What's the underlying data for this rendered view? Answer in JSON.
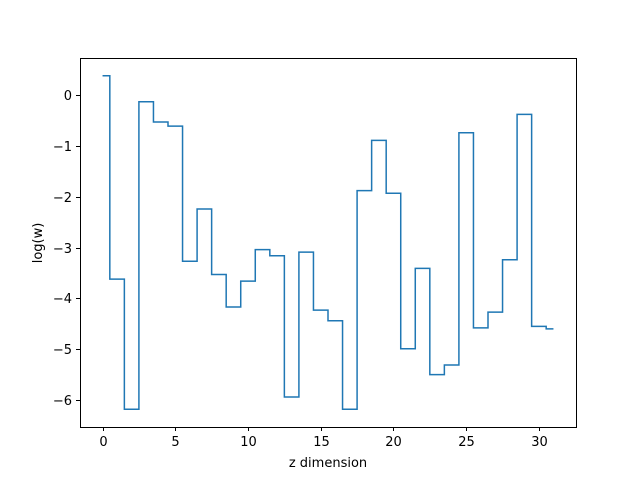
{
  "chart_data": {
    "type": "line",
    "drawstyle": "steps-mid",
    "title": "",
    "xlabel": "z dimension",
    "ylabel": "log(w)",
    "xlim": [
      -1.55,
      32.55
    ],
    "ylim": [
      -6.53,
      0.73
    ],
    "xticks": [
      0,
      5,
      10,
      15,
      20,
      25,
      30
    ],
    "xtick_labels": [
      "0",
      "5",
      "10",
      "15",
      "20",
      "25",
      "30"
    ],
    "yticks": [
      0,
      -1,
      -2,
      -3,
      -4,
      -5,
      -6
    ],
    "ytick_labels": [
      "0",
      "−1",
      "−2",
      "−3",
      "−4",
      "−5",
      "−6"
    ],
    "grid": false,
    "legend": null,
    "series": [
      {
        "color": "#1f77b4",
        "x": [
          0,
          1,
          2,
          3,
          4,
          5,
          6,
          7,
          8,
          9,
          10,
          11,
          12,
          13,
          14,
          15,
          16,
          17,
          18,
          19,
          20,
          21,
          22,
          23,
          24,
          25,
          26,
          27,
          28,
          29,
          30,
          31
        ],
        "y": [
          0.38,
          -3.62,
          -6.18,
          -0.13,
          -0.53,
          -0.61,
          -3.27,
          -2.24,
          -3.53,
          -4.17,
          -3.66,
          -3.04,
          -3.16,
          -5.94,
          -3.09,
          -4.23,
          -4.44,
          -6.18,
          -1.88,
          -0.89,
          -1.93,
          -4.99,
          -3.41,
          -5.5,
          -5.31,
          -0.74,
          -4.58,
          -4.27,
          -3.24,
          -0.38,
          -4.55,
          -4.6
        ]
      }
    ]
  }
}
